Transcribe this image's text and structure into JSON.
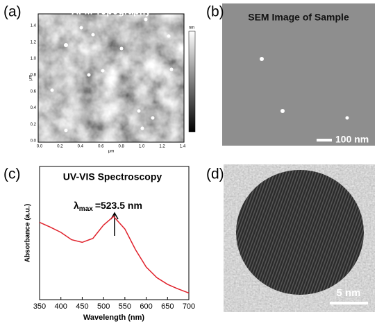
{
  "panels": {
    "a": {
      "label": "(a)",
      "title": "AFM Topography",
      "ticks": [
        "0.0",
        "0.2",
        "0.4",
        "0.6",
        "0.8",
        "1.0",
        "1.2",
        "1.4"
      ],
      "x_unit": "μm",
      "y_unit": "μm",
      "colorbar_unit": "nm"
    },
    "b": {
      "label": "(b)",
      "title": "SEM Image of Sample",
      "scale_bar": "100 nm"
    },
    "c": {
      "label": "(c)"
    },
    "d": {
      "label": "(d)",
      "scale_bar": "5 nm"
    }
  },
  "chart_data": {
    "type": "line",
    "title": "UV-VIS Spectroscopy",
    "x_label": "Wavelength (nm)",
    "y_label": "Absorbance (a.u.)",
    "annotation": {
      "symbol": "λ",
      "subscript": "max",
      "text": "=523.5 nm"
    },
    "x": [
      350,
      375,
      400,
      425,
      450,
      475,
      500,
      523.5,
      550,
      575,
      600,
      625,
      650,
      675,
      700
    ],
    "series": [
      {
        "name": "Absorbance",
        "color": "#e0202a",
        "values": [
          0.58,
          0.545,
          0.505,
          0.45,
          0.43,
          0.46,
          0.56,
          0.625,
          0.53,
          0.375,
          0.245,
          0.165,
          0.115,
          0.08,
          0.05
        ]
      }
    ],
    "xlim": [
      350,
      700
    ],
    "ylim": [
      0,
      1
    ],
    "xticks": [
      350,
      400,
      450,
      500,
      550,
      600,
      650,
      700
    ]
  }
}
